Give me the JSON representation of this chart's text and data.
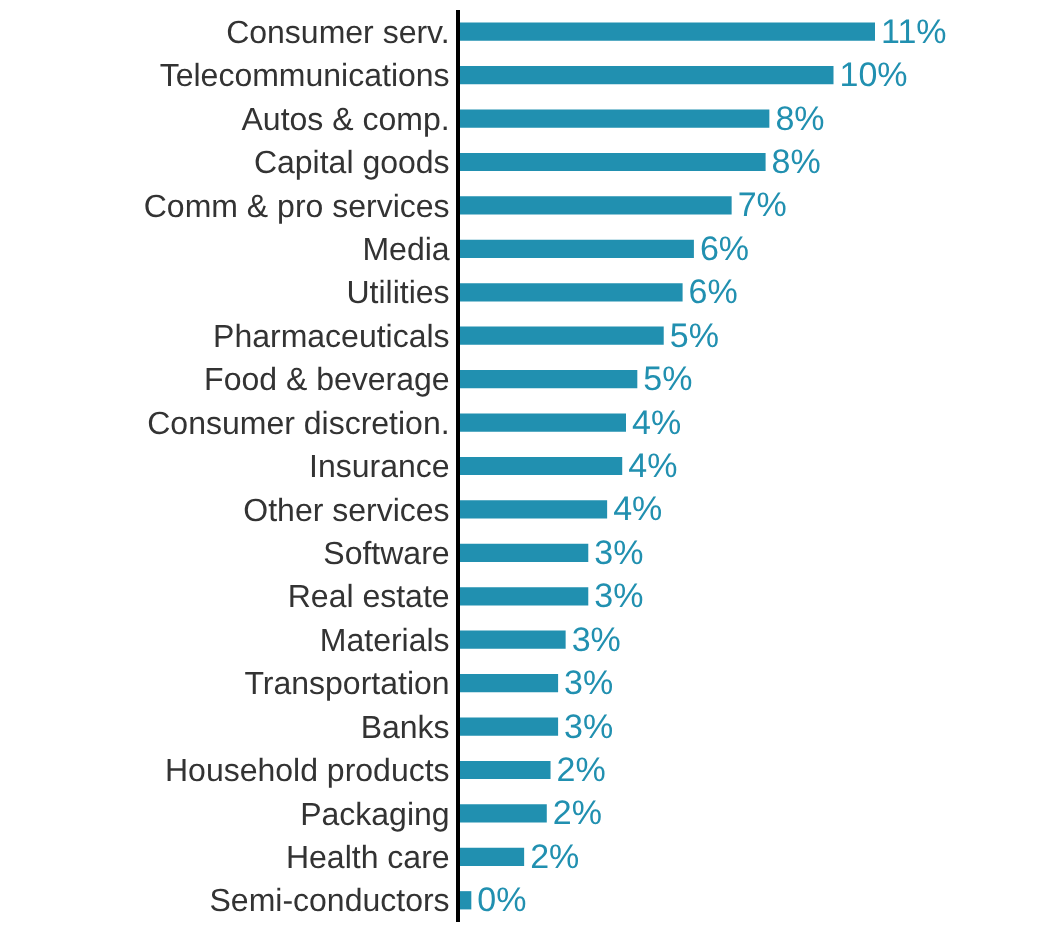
{
  "chart_data": {
    "type": "bar",
    "orientation": "horizontal",
    "categories": [
      "Consumer serv.",
      "Telecommunications",
      "Autos & comp.",
      "Capital goods",
      "Comm & pro services",
      "Media",
      "Utilities",
      "Pharmaceuticals",
      "Food & beverage",
      "Consumer discretion.",
      "Insurance",
      "Other services",
      "Software",
      "Real estate",
      "Materials",
      "Transportation",
      "Banks",
      "Household products",
      "Packaging",
      "Health care",
      "Semi-conductors"
    ],
    "values": [
      11.0,
      9.9,
      8.2,
      8.1,
      7.2,
      6.2,
      5.9,
      5.4,
      4.7,
      4.4,
      4.3,
      3.9,
      3.4,
      3.4,
      2.8,
      2.6,
      2.6,
      2.4,
      2.3,
      1.7,
      0.3
    ],
    "value_labels": [
      "11%",
      "10%",
      "8%",
      "8%",
      "7%",
      "6%",
      "6%",
      "5%",
      "5%",
      "4%",
      "4%",
      "4%",
      "3%",
      "3%",
      "3%",
      "3%",
      "3%",
      "2%",
      "2%",
      "2%",
      "0%"
    ],
    "color": "#2190b0",
    "legend": false,
    "tick_labels": "y"
  }
}
